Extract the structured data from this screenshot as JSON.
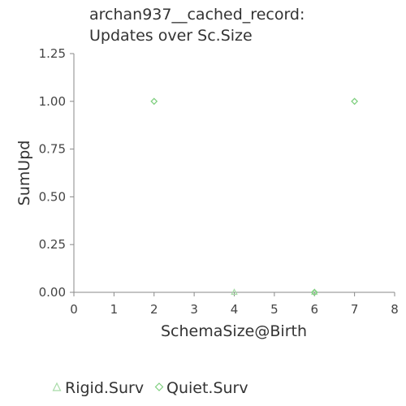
{
  "chart_data": {
    "type": "scatter",
    "title_lines": [
      "archan937__cached_record:",
      "Updates over Sc.Size"
    ],
    "xlabel": "SchemaSize@Birth",
    "ylabel": "SumUpd",
    "xlim": [
      0,
      8
    ],
    "ylim": [
      0,
      1.25
    ],
    "x_ticks": [
      "0",
      "1",
      "2",
      "3",
      "4",
      "5",
      "6",
      "7",
      "8"
    ],
    "y_ticks": [
      "0.00",
      "0.25",
      "0.50",
      "0.75",
      "1.00",
      "1.25"
    ],
    "grid": false,
    "legend_position": "bottom-left",
    "series": [
      {
        "name": "Rigid.Surv",
        "marker": "triangle",
        "color": "#a8dba8",
        "points": [
          {
            "x": 4,
            "y": 0
          },
          {
            "x": 6,
            "y": 0
          }
        ]
      },
      {
        "name": "Quiet.Surv",
        "marker": "diamond",
        "color": "#7fcf7f",
        "points": [
          {
            "x": 2,
            "y": 1
          },
          {
            "x": 6,
            "y": 0
          },
          {
            "x": 7,
            "y": 1
          }
        ]
      }
    ]
  }
}
